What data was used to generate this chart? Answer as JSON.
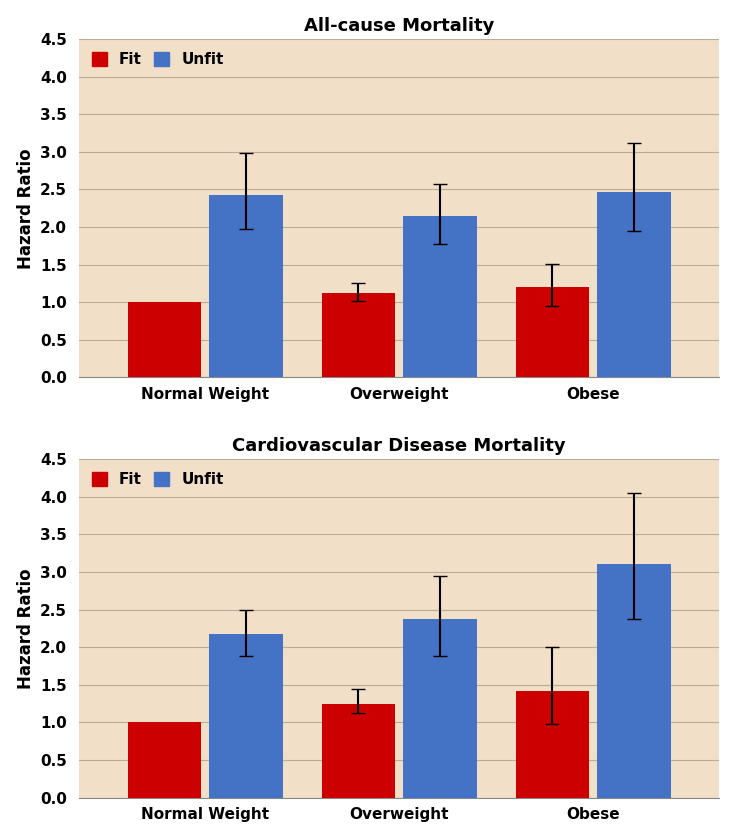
{
  "chart1": {
    "title": "All-cause Mortality",
    "categories": [
      "Normal Weight",
      "Overweight",
      "Obese"
    ],
    "fit_values": [
      1.0,
      1.12,
      1.2
    ],
    "fit_errors_lo": [
      0.0,
      0.1,
      0.25
    ],
    "fit_errors_hi": [
      0.0,
      0.13,
      0.31
    ],
    "unfit_values": [
      2.42,
      2.14,
      2.47
    ],
    "unfit_errors_lo": [
      0.45,
      0.36,
      0.52
    ],
    "unfit_errors_hi": [
      0.57,
      0.43,
      0.65
    ]
  },
  "chart2": {
    "title": "Cardiovascular Disease Mortality",
    "categories": [
      "Normal Weight",
      "Overweight",
      "Obese"
    ],
    "fit_values": [
      1.0,
      1.25,
      1.42
    ],
    "fit_errors_lo": [
      0.0,
      0.13,
      0.44
    ],
    "fit_errors_hi": [
      0.0,
      0.2,
      0.58
    ],
    "unfit_values": [
      2.18,
      2.38,
      3.1
    ],
    "unfit_errors_lo": [
      0.3,
      0.5,
      0.72
    ],
    "unfit_errors_hi": [
      0.32,
      0.57,
      0.95
    ]
  },
  "fit_color": "#CC0000",
  "unfit_color": "#4472C4",
  "background_color": "#F2DFC8",
  "figure_facecolor": "#FFFFFF",
  "bar_width": 0.38,
  "bar_gap": 0.04,
  "ylim": [
    0,
    4.5
  ],
  "yticks": [
    0.0,
    0.5,
    1.0,
    1.5,
    2.0,
    2.5,
    3.0,
    3.5,
    4.0,
    4.5
  ],
  "ylabel": "Hazard Ratio",
  "legend_labels": [
    "Fit",
    "Unfit"
  ],
  "title_fontsize": 13,
  "axis_fontsize": 12,
  "tick_fontsize": 11,
  "legend_fontsize": 11,
  "error_capsize": 5,
  "error_linewidth": 1.5,
  "grid_color": "#BBAA99",
  "grid_linewidth": 0.8
}
